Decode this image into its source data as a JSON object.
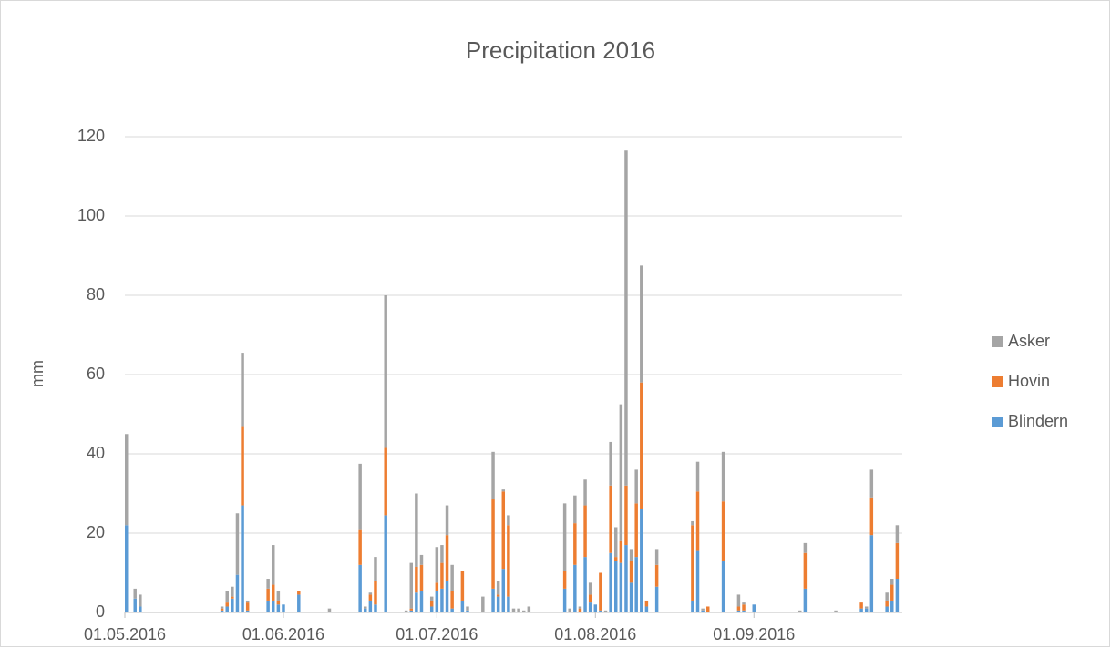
{
  "chart_data": {
    "type": "stacked_bar",
    "title": "Precipitation 2016",
    "y_label": "mm",
    "categories": [
      "01.05.2016",
      null,
      null,
      null,
      null,
      null,
      null,
      null,
      null,
      null,
      null,
      null,
      null,
      null,
      null,
      null,
      null,
      null,
      null,
      null,
      null,
      null,
      null,
      null,
      null,
      null,
      null,
      null,
      null,
      null,
      null,
      "01.06.2016",
      null,
      null,
      null,
      null,
      null,
      null,
      null,
      null,
      null,
      null,
      null,
      null,
      null,
      null,
      null,
      null,
      null,
      null,
      null,
      null,
      null,
      null,
      null,
      null,
      null,
      null,
      null,
      null,
      null,
      "01.07.2016",
      null,
      null,
      null,
      null,
      null,
      null,
      null,
      null,
      null,
      null,
      null,
      null,
      null,
      null,
      null,
      null,
      null,
      null,
      null,
      null,
      null,
      null,
      null,
      null,
      null,
      null,
      null,
      null,
      null,
      null,
      "01.08.2016",
      null,
      null,
      null,
      null,
      null,
      null,
      null,
      null,
      null,
      null,
      null,
      null,
      null,
      null,
      null,
      null,
      null,
      null,
      null,
      null,
      null,
      null,
      null,
      null,
      null,
      null,
      null,
      null,
      null,
      null,
      "01.09.2016",
      null,
      null,
      null,
      null,
      null,
      null,
      null,
      null,
      null,
      null,
      null,
      null,
      null,
      null,
      null,
      null,
      null,
      null,
      null,
      null,
      null,
      null,
      null,
      null,
      null,
      null,
      null,
      null,
      null
    ],
    "series": [
      {
        "name": "Blindern",
        "color": "#5b9bd5",
        "values": [
          22,
          0,
          3.5,
          1.5,
          0,
          0,
          0,
          0,
          0,
          0,
          0,
          0,
          0,
          0,
          0,
          0,
          0,
          0,
          0,
          0.5,
          1.5,
          3.5,
          9.5,
          27,
          0.5,
          0,
          0,
          0,
          3,
          3,
          2,
          2,
          0,
          0,
          4.5,
          0,
          0,
          0,
          0,
          0,
          0,
          0,
          0,
          0,
          0,
          0,
          12,
          1,
          3,
          2,
          0,
          24.5,
          0,
          0,
          0,
          0,
          0.5,
          5,
          5.5,
          0,
          1.5,
          5.5,
          6,
          8,
          1,
          0,
          3,
          0.5,
          0,
          0,
          0,
          0,
          6,
          4,
          11,
          4,
          0,
          0,
          0,
          0,
          0,
          0,
          0,
          0,
          0,
          0,
          6,
          0,
          12,
          0,
          14,
          2.5,
          2,
          0.5,
          0,
          15,
          13,
          12.5,
          17,
          7.5,
          14,
          26,
          1.5,
          0,
          6.5,
          0,
          0,
          0,
          0,
          0,
          0,
          3,
          15.5,
          0.5,
          0,
          0,
          0,
          13,
          0,
          0,
          0.5,
          0.5,
          0,
          2,
          0,
          0,
          0,
          0,
          0,
          0,
          0,
          0,
          0,
          6,
          0,
          0,
          0,
          0,
          0,
          0,
          0,
          0,
          0,
          0,
          1,
          1,
          19.5,
          0,
          0,
          1.5,
          3,
          8.5,
          0
        ]
      },
      {
        "name": "Hovin",
        "color": "#ed7d31",
        "values": [
          0,
          0,
          0,
          0,
          0,
          0,
          0,
          0,
          0,
          0,
          0,
          0,
          0,
          0,
          0,
          0,
          0,
          0,
          0,
          0.5,
          1,
          0.5,
          0,
          20,
          2,
          0,
          0,
          0,
          3,
          4,
          1,
          0,
          0,
          0,
          1,
          0,
          0,
          0,
          0,
          0,
          0,
          0,
          0,
          0,
          0,
          0,
          9,
          0,
          1.5,
          6,
          0,
          17,
          0,
          0,
          0,
          0,
          0.5,
          6.5,
          6.5,
          0,
          1.5,
          2,
          6.5,
          11.5,
          4.5,
          0,
          7.5,
          0,
          0,
          0,
          0,
          0,
          22.5,
          0.5,
          19.5,
          18,
          0,
          0,
          0,
          0,
          0,
          0,
          0,
          0,
          0,
          0,
          4.5,
          0,
          10.5,
          1,
          13,
          2,
          0,
          9.5,
          0,
          17,
          1,
          5.5,
          15,
          5.5,
          13.5,
          32,
          1.5,
          0,
          5.5,
          0,
          0,
          0,
          0,
          0,
          0,
          19,
          15,
          0,
          1.5,
          0,
          0,
          15,
          0,
          0,
          1,
          1.5,
          0,
          0,
          0,
          0,
          0,
          0,
          0,
          0,
          0,
          0,
          0,
          9,
          0,
          0,
          0,
          0,
          0,
          0,
          0,
          0,
          0,
          0,
          1.5,
          0,
          9.5,
          0,
          0,
          1.5,
          4,
          9,
          0
        ]
      },
      {
        "name": "Asker",
        "color": "#a5a5a5",
        "values": [
          23,
          0,
          2.5,
          3,
          0,
          0,
          0,
          0,
          0,
          0,
          0,
          0,
          0,
          0,
          0,
          0,
          0,
          0,
          0,
          0.5,
          3,
          2.5,
          15.5,
          18.5,
          0.5,
          0,
          0,
          0,
          2.5,
          10,
          2.5,
          0,
          0,
          0,
          0,
          0,
          0,
          0,
          0,
          0,
          1,
          0,
          0,
          0,
          0,
          0,
          16.5,
          0.5,
          0.5,
          6,
          0,
          38.5,
          0,
          0,
          0,
          0.5,
          11.5,
          18.5,
          2.5,
          0,
          1,
          9,
          4.5,
          7.5,
          6.5,
          0,
          0,
          1,
          0,
          0,
          4,
          0,
          12,
          3.5,
          0.5,
          2.5,
          1,
          1,
          0.5,
          1.5,
          0,
          0,
          0,
          0,
          0,
          0,
          17,
          1,
          7,
          0.5,
          6.5,
          3,
          0,
          0,
          0.5,
          11,
          7.5,
          34.5,
          84.5,
          3,
          8.5,
          29.5,
          0,
          0,
          4,
          0,
          0,
          0,
          0,
          0,
          0,
          1,
          7.5,
          0.5,
          0,
          0,
          0,
          12.5,
          0,
          0,
          3,
          0.5,
          0,
          0,
          0,
          0,
          0,
          0,
          0,
          0,
          0,
          0,
          0.5,
          2.5,
          0,
          0,
          0,
          0,
          0,
          0.5,
          0,
          0,
          0,
          0,
          0,
          0.5,
          7,
          0,
          0,
          2,
          1.5,
          4.5,
          0
        ]
      }
    ],
    "ylim": [
      0,
      120
    ],
    "yticks": [
      0,
      20,
      40,
      60,
      80,
      100,
      120
    ],
    "grid": true,
    "legend": "right"
  }
}
